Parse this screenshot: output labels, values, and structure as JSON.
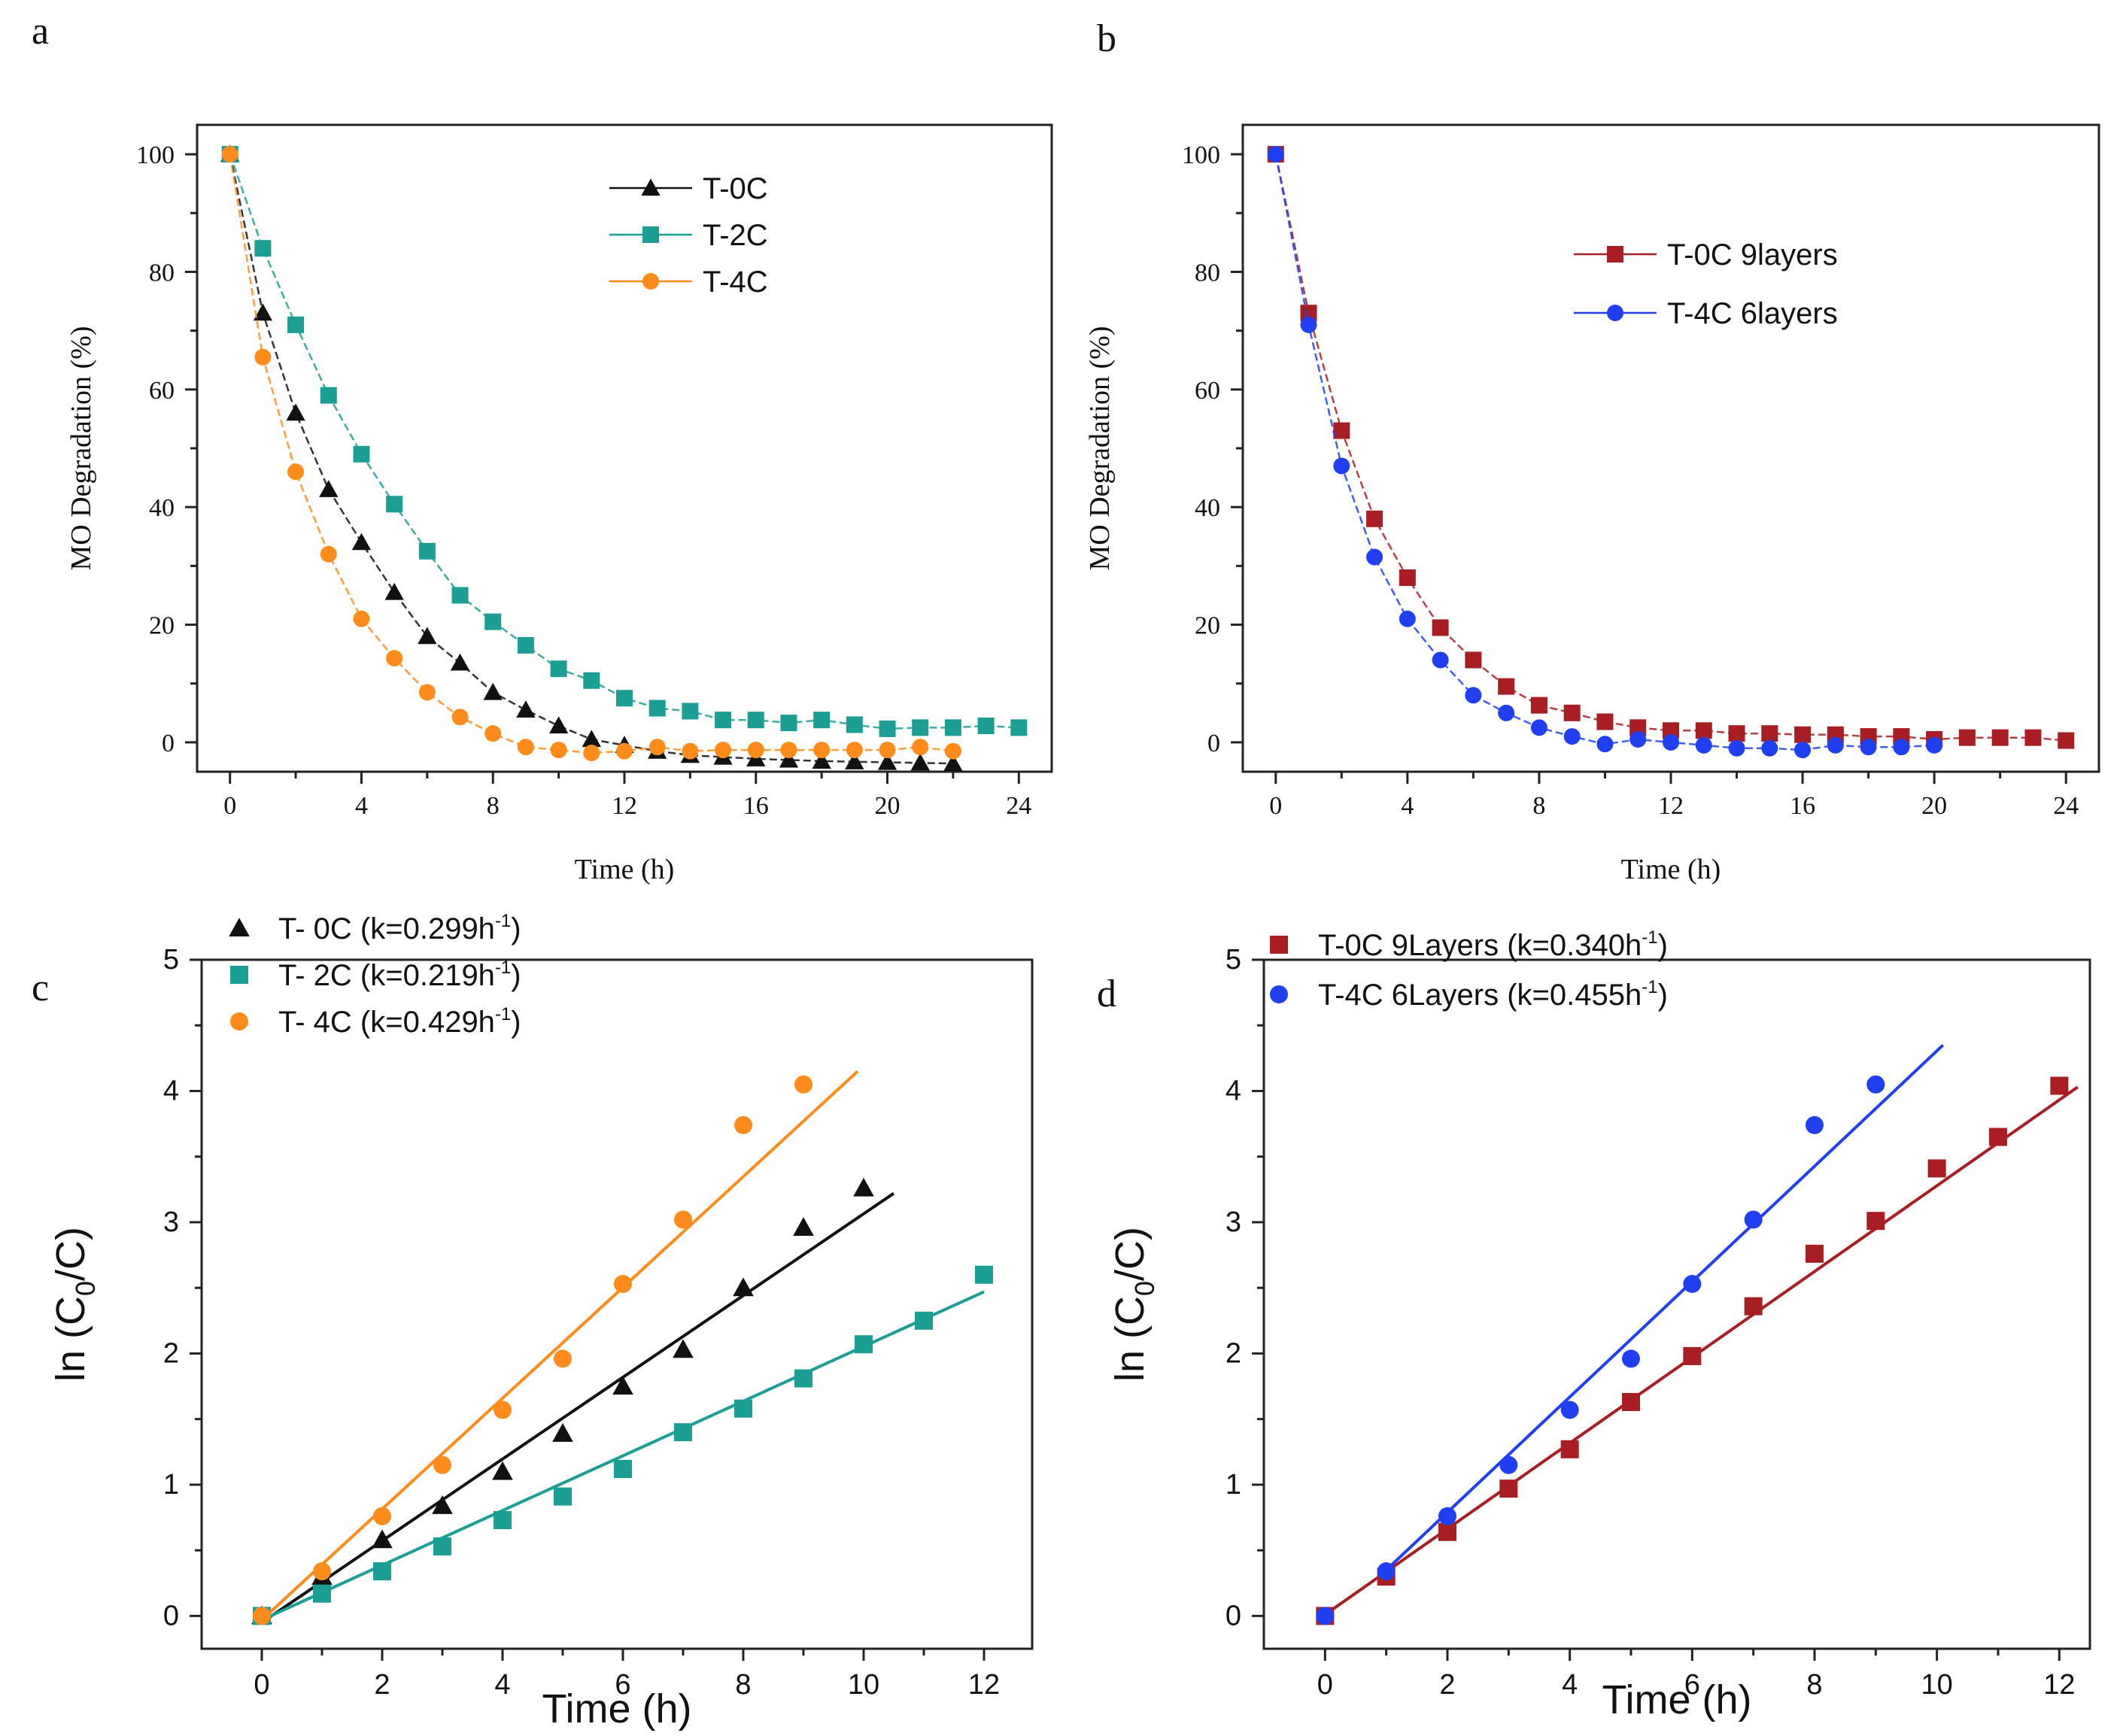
{
  "chart_data": [
    {
      "panel": "a",
      "type": "line",
      "marker_style": "connected-dashed",
      "xlabel": "Time (h)",
      "ylabel": "MO Degradation (%)",
      "xlim": [
        -1,
        25
      ],
      "ylim": [
        -5,
        105
      ],
      "xticks": [
        0,
        4,
        8,
        12,
        16,
        20,
        24
      ],
      "yticks": [
        0,
        20,
        40,
        60,
        80,
        100
      ],
      "legend": {
        "position": "top-right"
      },
      "series": [
        {
          "name": "T-0C",
          "color": "#111111",
          "marker": "triangle",
          "x": [
            0,
            1,
            2,
            3,
            4,
            5,
            6,
            7,
            8,
            9,
            10,
            11,
            12,
            13,
            14,
            15,
            16,
            17,
            18,
            19,
            20,
            21,
            22
          ],
          "y": [
            100,
            73,
            56,
            43,
            34,
            25.5,
            18,
            13.5,
            8.5,
            5.5,
            2.8,
            0.5,
            -0.5,
            -1.5,
            -2.2,
            -2.5,
            -2.8,
            -3,
            -3.2,
            -3.3,
            -3.4,
            -3.5,
            -3.6
          ]
        },
        {
          "name": "T-2C",
          "color": "#1b9e93",
          "marker": "square",
          "x": [
            0,
            1,
            2,
            3,
            4,
            5,
            6,
            7,
            8,
            9,
            10,
            11,
            12,
            13,
            14,
            15,
            16,
            17,
            18,
            19,
            20,
            21,
            22,
            23,
            24
          ],
          "y": [
            100,
            84,
            71,
            59,
            49,
            40.5,
            32.5,
            25,
            20.5,
            16.5,
            12.5,
            10.5,
            7.5,
            5.8,
            5.3,
            3.8,
            3.8,
            3.3,
            3.8,
            3,
            2.3,
            2.5,
            2.5,
            2.8,
            2.5
          ]
        },
        {
          "name": "T-4C",
          "color": "#ff8c1a",
          "marker": "circle",
          "x": [
            0,
            1,
            2,
            3,
            4,
            5,
            6,
            7,
            8,
            9,
            10,
            11,
            12,
            13,
            14,
            15,
            16,
            17,
            18,
            19,
            20,
            21,
            22
          ],
          "y": [
            100,
            65.5,
            46,
            32,
            21,
            14.3,
            8.5,
            4.3,
            1.5,
            -0.8,
            -1.3,
            -1.8,
            -1.5,
            -0.8,
            -1.5,
            -1.3,
            -1.3,
            -1.3,
            -1.3,
            -1.3,
            -1.3,
            -0.8,
            -1.5
          ]
        }
      ]
    },
    {
      "panel": "b",
      "type": "line",
      "marker_style": "connected-dashed",
      "xlabel": "Time (h)",
      "ylabel": "MO Degradation (%)",
      "xlim": [
        -1,
        25
      ],
      "ylim": [
        -5,
        105
      ],
      "xticks": [
        0,
        4,
        8,
        12,
        16,
        20,
        24
      ],
      "yticks": [
        0,
        20,
        40,
        60,
        80,
        100
      ],
      "legend": {
        "position": "top-right"
      },
      "series": [
        {
          "name": "T-0C 9layers",
          "color": "#a81e22",
          "marker": "square",
          "x": [
            0,
            1,
            2,
            3,
            4,
            5,
            6,
            7,
            8,
            9,
            10,
            11,
            12,
            13,
            14,
            15,
            16,
            17,
            18,
            19,
            20,
            21,
            22,
            23,
            24
          ],
          "y": [
            100,
            73,
            53,
            38,
            28,
            19.5,
            14,
            9.5,
            6.3,
            5,
            3.5,
            2.5,
            2,
            2,
            1.5,
            1.5,
            1.3,
            1.3,
            1,
            1,
            0.5,
            0.8,
            0.8,
            0.8,
            0.3
          ]
        },
        {
          "name": "T-4C 6layers",
          "color": "#1f3ff0",
          "marker": "circle",
          "x": [
            0,
            1,
            2,
            3,
            4,
            5,
            6,
            7,
            8,
            9,
            10,
            11,
            12,
            13,
            14,
            15,
            16,
            17,
            18,
            19,
            20
          ],
          "y": [
            100,
            71,
            47,
            31.5,
            21,
            14,
            8,
            5,
            2.5,
            1,
            -0.3,
            0.5,
            0,
            -0.5,
            -1,
            -1,
            -1.3,
            -0.5,
            -0.8,
            -0.8,
            -0.5
          ]
        }
      ]
    },
    {
      "panel": "c",
      "type": "scatter",
      "fit": "linear",
      "xlabel": "Time (h)",
      "ylabel": "ln (C0/C)",
      "ylabel_parts": {
        "pre": "ln (C",
        "sub": "0",
        "post": "/C)"
      },
      "xlim": [
        -1,
        12.8
      ],
      "ylim": [
        -0.25,
        5
      ],
      "xticks": [
        0,
        2,
        4,
        6,
        8,
        10,
        12
      ],
      "yticks": [
        0,
        1,
        2,
        3,
        4,
        5
      ],
      "legend": {
        "position": "top-left"
      },
      "series": [
        {
          "name": "T- 0C (k=0.299h",
          "name_sup": "-1",
          "name_end": ")",
          "color": "#111111",
          "marker": "triangle",
          "x": [
            0,
            1,
            2,
            3,
            4,
            5,
            6,
            7,
            8,
            9,
            10
          ],
          "y": [
            0,
            0.3,
            0.58,
            0.84,
            1.1,
            1.39,
            1.75,
            2.03,
            2.5,
            2.96,
            3.26
          ],
          "fit_x": [
            0,
            10.5
          ],
          "fit_y": [
            -0.05,
            3.22
          ]
        },
        {
          "name": "T- 2C (k=0.219h",
          "name_sup": "-1",
          "name_end": ")",
          "color": "#1b9e93",
          "marker": "square",
          "x": [
            0,
            1,
            2,
            3,
            4,
            5,
            6,
            7,
            8,
            9,
            10,
            11,
            12
          ],
          "y": [
            0,
            0.17,
            0.34,
            0.53,
            0.73,
            0.91,
            1.12,
            1.4,
            1.58,
            1.81,
            2.07,
            2.25,
            2.6
          ],
          "fit_x": [
            0,
            12
          ],
          "fit_y": [
            -0.03,
            2.47
          ]
        },
        {
          "name": "T- 4C (k=0.429h",
          "name_sup": "-1",
          "name_end": ")",
          "color": "#ff8c1a",
          "marker": "circle",
          "x": [
            0,
            1,
            2,
            3,
            4,
            5,
            6,
            7,
            8,
            9
          ],
          "y": [
            0,
            0.34,
            0.76,
            1.15,
            1.57,
            1.96,
            2.53,
            3.02,
            3.74,
            4.05
          ],
          "fit_x": [
            0,
            9.9
          ],
          "fit_y": [
            -0.03,
            4.15
          ]
        }
      ]
    },
    {
      "panel": "d",
      "type": "scatter",
      "fit": "linear",
      "xlabel": "Time (h)",
      "ylabel": "ln (C0/C)",
      "ylabel_parts": {
        "pre": "ln (C",
        "sub": "0",
        "post": "/C)"
      },
      "xlim": [
        -1,
        12.5
      ],
      "ylim": [
        -0.25,
        5
      ],
      "xticks": [
        0,
        2,
        4,
        6,
        8,
        10,
        12
      ],
      "yticks": [
        0,
        1,
        2,
        3,
        4,
        5
      ],
      "legend": {
        "position": "top-left"
      },
      "series": [
        {
          "name": "T-0C 9Layers (k=0.340h",
          "name_sup": "-1",
          "name_end": ")",
          "color": "#a81e22",
          "marker": "square",
          "x": [
            0,
            1,
            2,
            3,
            4,
            5,
            6,
            7,
            8,
            9,
            10,
            11,
            12
          ],
          "y": [
            0,
            0.3,
            0.64,
            0.97,
            1.27,
            1.63,
            1.98,
            2.36,
            2.76,
            3.01,
            3.41,
            3.65,
            4.04
          ],
          "fit_x": [
            0,
            12.3
          ],
          "fit_y": [
            0.01,
            4.03
          ]
        },
        {
          "name": "T-4C 6Layers (k=0.455h",
          "name_sup": "-1",
          "name_end": ")",
          "color": "#1f3ff0",
          "marker": "circle",
          "x": [
            0,
            1,
            2,
            3,
            4,
            5,
            6,
            7,
            8,
            9
          ],
          "y": [
            0,
            0.34,
            0.76,
            1.15,
            1.57,
            1.96,
            2.53,
            3.02,
            3.74,
            4.05
          ],
          "fit_x": [
            1,
            10.1
          ],
          "fit_y": [
            0.35,
            4.35
          ]
        }
      ]
    }
  ],
  "panel_letters": [
    "a",
    "b",
    "c",
    "d"
  ]
}
